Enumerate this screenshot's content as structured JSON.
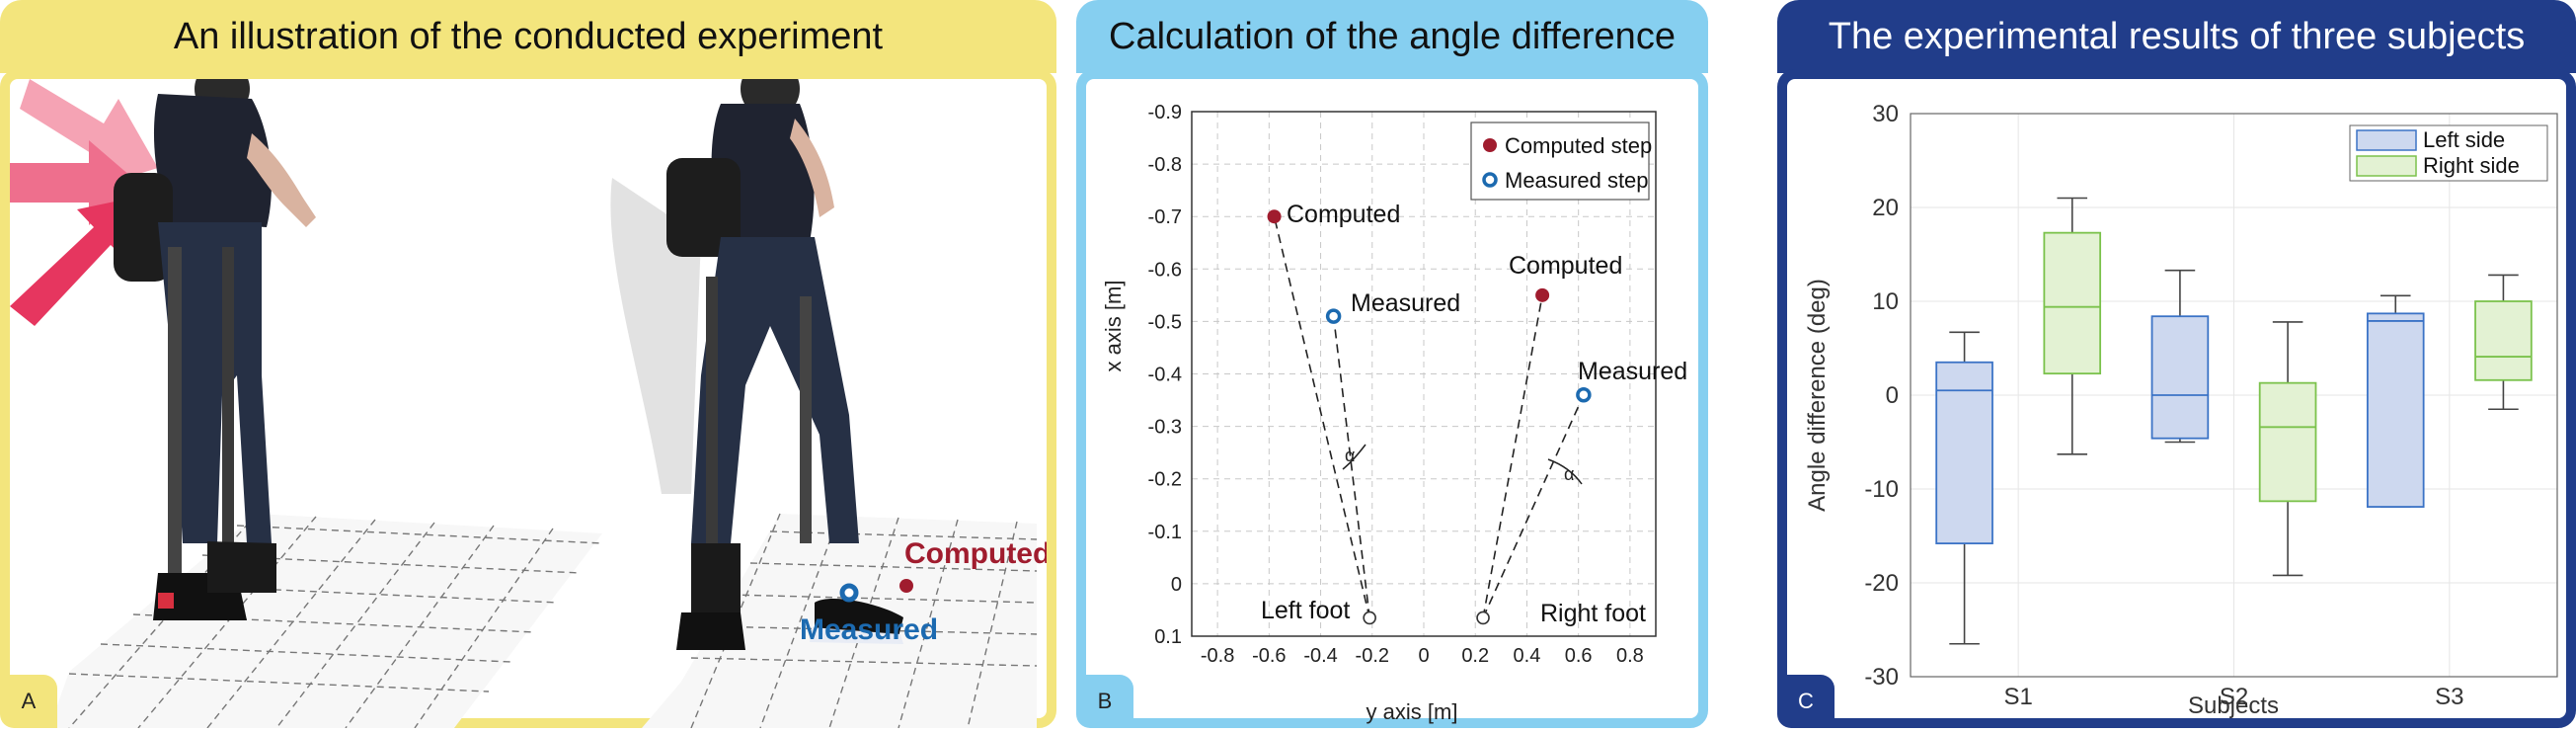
{
  "panel_a": {
    "title": "An illustration of the conducted experiment",
    "letter": "A",
    "computed_label": "Computed",
    "measured_label": "Measured",
    "colors": {
      "computed": "#a01c2e",
      "measured": "#1c6ab0",
      "arrow": "#ea4f72"
    }
  },
  "panel_b": {
    "title": "Calculation of the angle difference",
    "letter": "B",
    "xlabel": "y axis [m]",
    "ylabel": "x axis [m]",
    "xticks": [
      "-0.8",
      "-0.6",
      "-0.4",
      "-0.2",
      "0",
      "0.2",
      "0.4",
      "0.6",
      "0.8"
    ],
    "yticks": [
      "-0.9",
      "-0.8",
      "-0.7",
      "-0.6",
      "-0.5",
      "-0.4",
      "-0.3",
      "-0.2",
      "-0.1",
      "0",
      "0.1"
    ],
    "legend": {
      "computed": "Computed step",
      "measured": "Measured step"
    },
    "points": {
      "left_foot": {
        "label": "Left foot",
        "y": -0.21,
        "x": 0.065
      },
      "right_foot": {
        "label": "Right foot",
        "y": 0.23,
        "x": 0.065
      },
      "left_computed": {
        "label": "Computed",
        "y": -0.58,
        "x": -0.7
      },
      "left_measured": {
        "label": "Measured",
        "y": -0.35,
        "x": -0.51
      },
      "right_computed": {
        "label": "Computed",
        "y": 0.46,
        "x": -0.55
      },
      "right_measured": {
        "label": "Measured",
        "y": 0.62,
        "x": -0.36
      }
    },
    "alpha": "α"
  },
  "panel_c": {
    "title": "The experimental results of three subjects",
    "letter": "C"
  },
  "chart_data": {
    "type": "box",
    "title": "The experimental results of three subjects",
    "xlabel": "Subjects",
    "ylabel": "Angle difference (deg)",
    "ylim": [
      -30,
      30
    ],
    "yticks": [
      "30",
      "20",
      "10",
      "0",
      "-10",
      "-20",
      "-30"
    ],
    "categories": [
      "S1",
      "S2",
      "S3"
    ],
    "grid": true,
    "legend_position": "top-right",
    "series": [
      {
        "name": "Left side",
        "fill": "#cdd8ef",
        "stroke": "#3b73c6",
        "boxes": [
          {
            "whisker_low": -26.5,
            "q1": -15.8,
            "median": 0.5,
            "q3": 3.5,
            "whisker_high": 6.7
          },
          {
            "whisker_low": -5.0,
            "q1": -4.6,
            "median": 0.0,
            "q3": 8.4,
            "whisker_high": 13.3
          },
          {
            "whisker_low": -11.9,
            "q1": -11.9,
            "median": 7.9,
            "q3": 8.7,
            "whisker_high": 10.6
          }
        ]
      },
      {
        "name": "Right side",
        "fill": "#e3f2d3",
        "stroke": "#7bc24c",
        "boxes": [
          {
            "whisker_low": -6.3,
            "q1": 2.3,
            "median": 9.4,
            "q3": 17.3,
            "whisker_high": 21.0
          },
          {
            "whisker_low": -19.2,
            "q1": -11.3,
            "median": -3.4,
            "q3": 1.3,
            "whisker_high": 7.8
          },
          {
            "whisker_low": -1.5,
            "q1": 1.6,
            "median": 4.1,
            "q3": 10.0,
            "whisker_high": 12.8
          }
        ]
      }
    ]
  }
}
